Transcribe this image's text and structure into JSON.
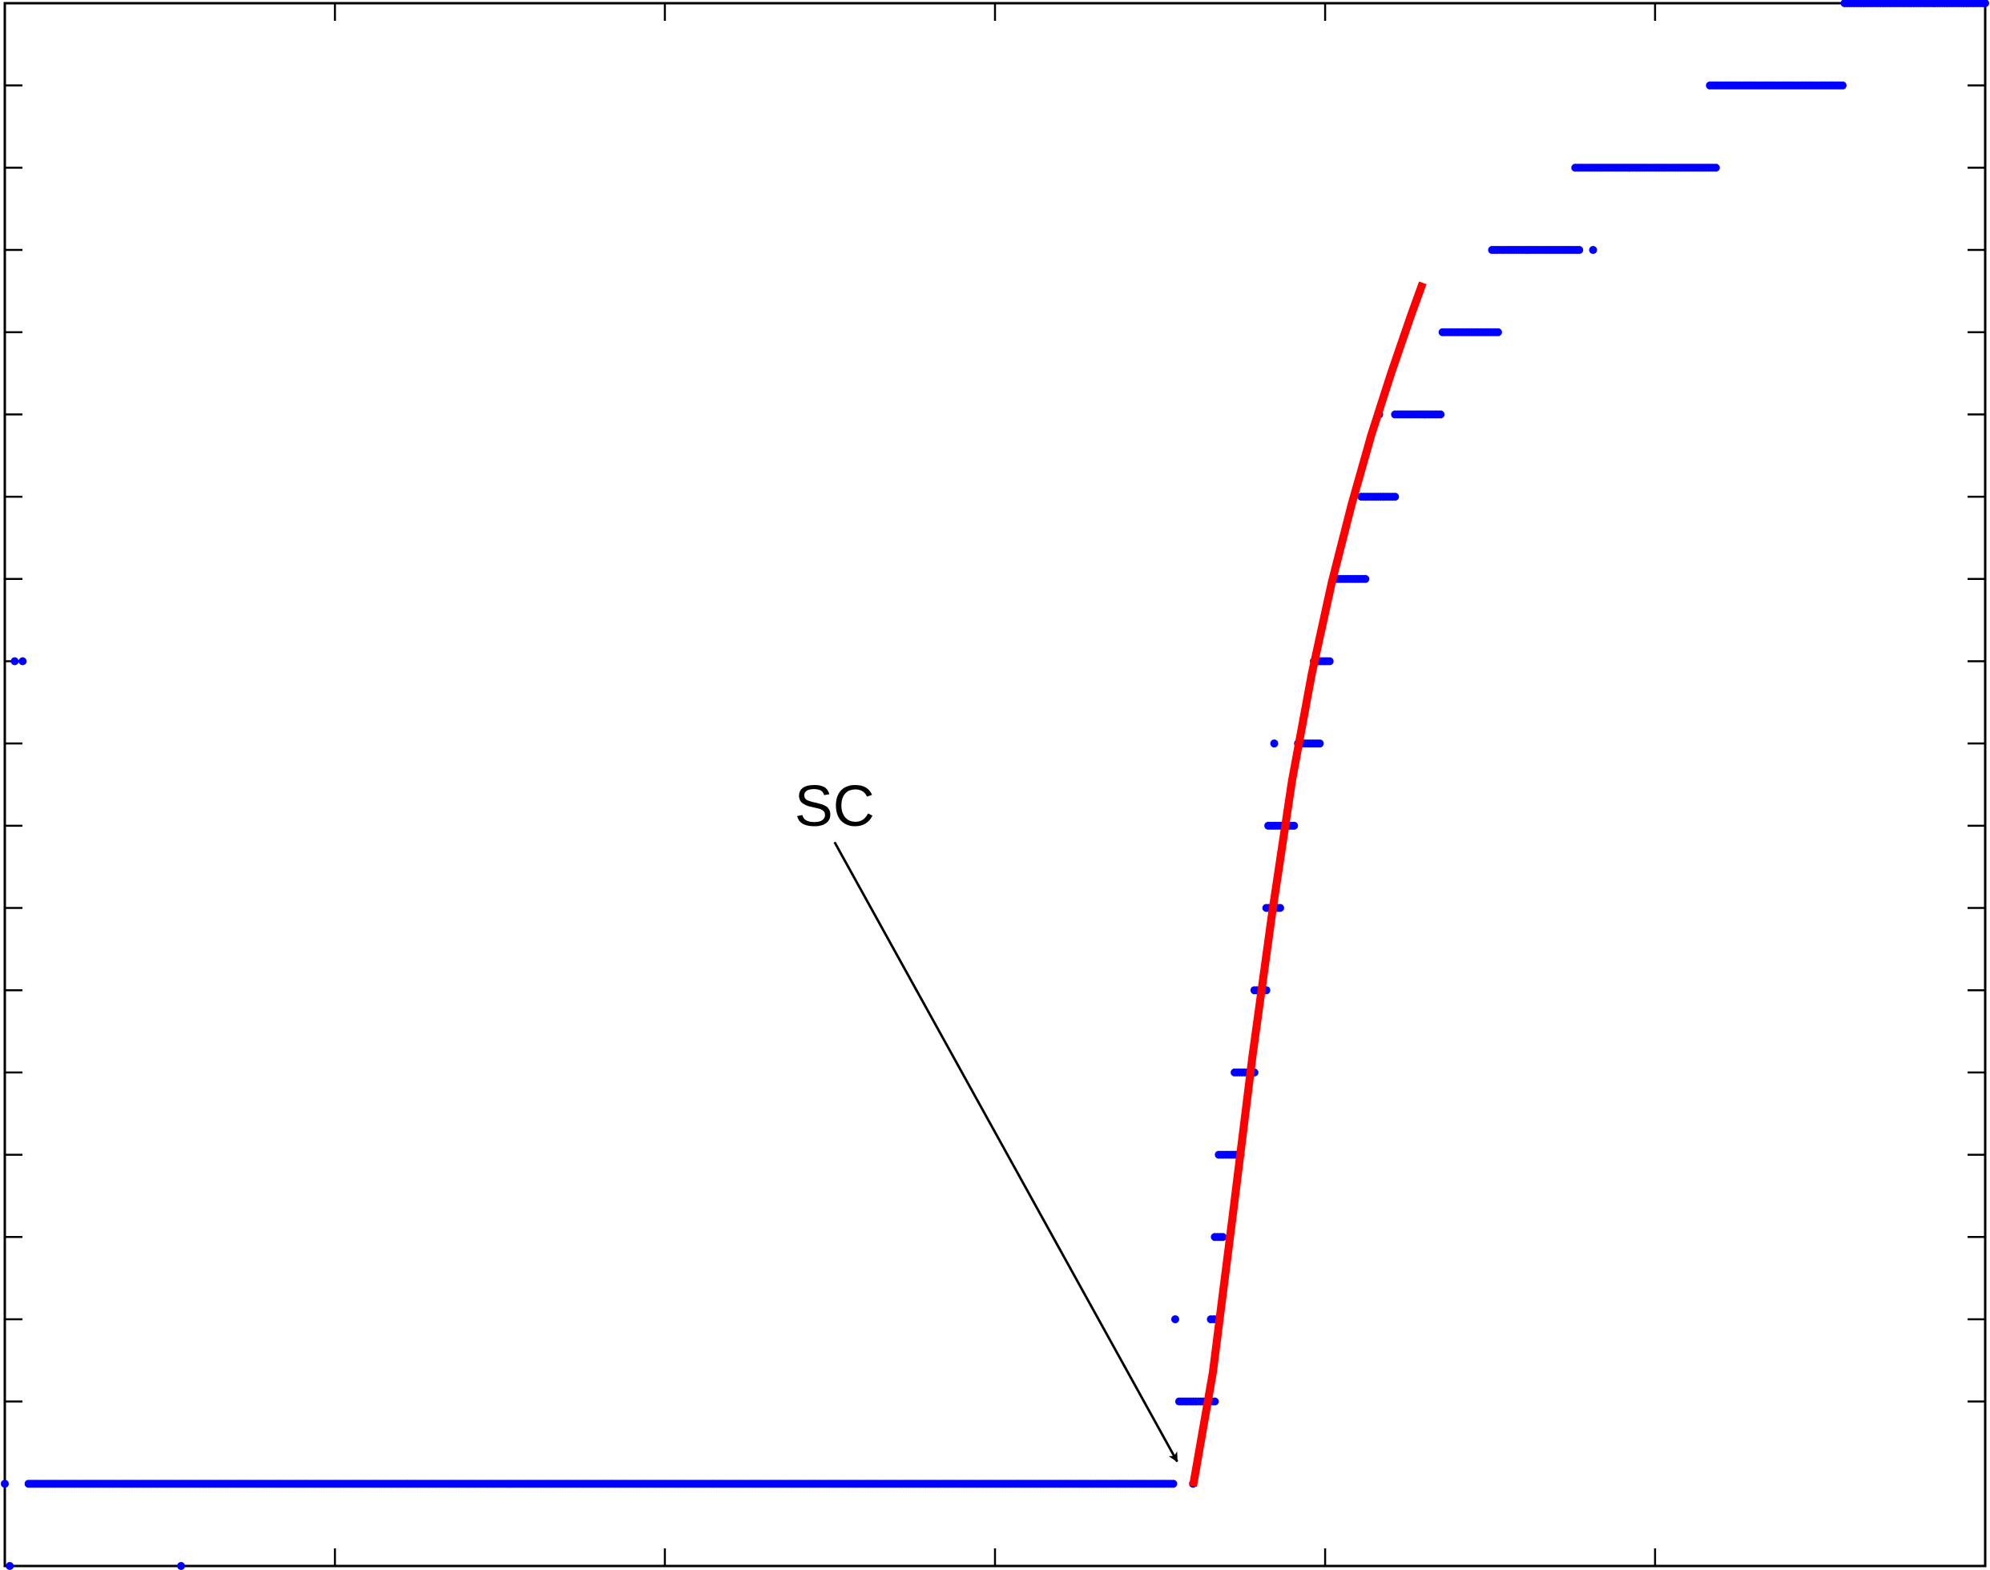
{
  "chart_data": {
    "type": "scatter",
    "title": "",
    "xlabel": "",
    "ylabel": "",
    "xlim": [
      0,
      1
    ],
    "ylim": [
      0,
      19
    ],
    "x_ticks": [
      0.1667,
      0.3333,
      0.5,
      0.6667,
      0.8333
    ],
    "y_ticks": [
      2,
      3,
      4,
      5,
      6,
      7,
      8,
      9,
      10,
      11,
      12,
      13,
      14,
      15,
      16,
      17,
      18
    ],
    "grid": false,
    "series_color": "#0000ff",
    "fit_color": "#ff0000",
    "segments": [
      {
        "y": 1,
        "x_start": 0.012,
        "x_end": 0.59
      },
      {
        "y": 2,
        "x_start": 0.593,
        "x_end": 0.611
      },
      {
        "y": 3,
        "x_start": 0.609,
        "x_end": 0.612
      },
      {
        "y": 4,
        "x_start": 0.611,
        "x_end": 0.615
      },
      {
        "y": 5,
        "x_start": 0.613,
        "x_end": 0.624
      },
      {
        "y": 6,
        "x_start": 0.621,
        "x_end": 0.631
      },
      {
        "y": 7,
        "x_start": 0.631,
        "x_end": 0.637
      },
      {
        "y": 8,
        "x_start": 0.637,
        "x_end": 0.644
      },
      {
        "y": 9,
        "x_start": 0.638,
        "x_end": 0.651
      },
      {
        "y": 10,
        "x_start": 0.653,
        "x_end": 0.664
      },
      {
        "y": 11,
        "x_start": 0.661,
        "x_end": 0.669
      },
      {
        "y": 12,
        "x_start": 0.672,
        "x_end": 0.687
      },
      {
        "y": 13,
        "x_start": 0.685,
        "x_end": 0.702
      },
      {
        "y": 14,
        "x_start": 0.702,
        "x_end": 0.725
      },
      {
        "y": 15,
        "x_start": 0.726,
        "x_end": 0.754
      },
      {
        "y": 16,
        "x_start": 0.751,
        "x_end": 0.795
      },
      {
        "y": 17,
        "x_start": 0.793,
        "x_end": 0.864
      },
      {
        "y": 18,
        "x_start": 0.861,
        "x_end": 0.928
      },
      {
        "y": 19,
        "x_start": 0.929,
        "x_end": 1.0
      }
    ],
    "isolated_points": [
      {
        "x": 0.0,
        "y": 1
      },
      {
        "x": 0.005,
        "y": 11
      },
      {
        "x": 0.009,
        "y": 11
      },
      {
        "x": 0.0025,
        "y": 0
      },
      {
        "x": 0.089,
        "y": 0
      },
      {
        "x": 0.591,
        "y": 3
      },
      {
        "x": 0.641,
        "y": 10
      },
      {
        "x": 0.694,
        "y": 14
      },
      {
        "x": 0.802,
        "y": 16
      },
      {
        "x": 0.6,
        "y": 1
      }
    ],
    "fit_curve": {
      "x": [
        0.6,
        0.61,
        0.62,
        0.63,
        0.64,
        0.65,
        0.66,
        0.67,
        0.68,
        0.69,
        0.7,
        0.71,
        0.716
      ],
      "y": [
        0.97,
        2.35,
        4.25,
        6.2,
        7.95,
        9.55,
        10.85,
        11.95,
        12.9,
        13.75,
        14.5,
        15.2,
        15.6
      ]
    },
    "annotations": [
      {
        "text": "SC",
        "text_at": {
          "x": 0.419,
          "y": 9
        },
        "arrow_from": {
          "x": 0.419,
          "y": 8.8
        },
        "arrow_to": {
          "x": 0.592,
          "y": 1.27
        }
      }
    ]
  }
}
